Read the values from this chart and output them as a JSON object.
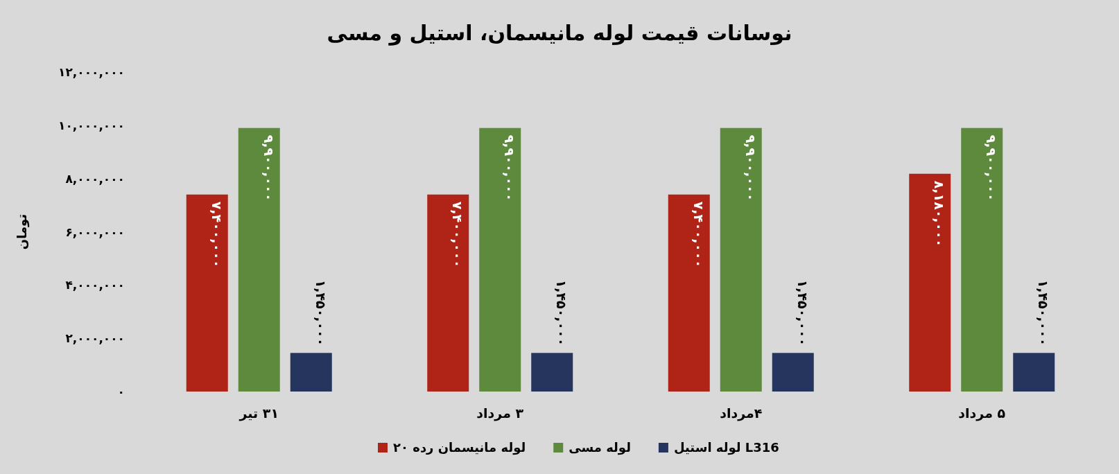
{
  "chart_data": {
    "type": "bar",
    "title": "نوسانات قیمت لوله مانیسمان، استیل و مسی",
    "ylabel": "تومان",
    "categories": [
      "۳۱ تیر",
      "۳ مرداد",
      "۴مرداد",
      "۵ مرداد"
    ],
    "series": [
      {
        "name": "لوله مانیسمان  رده ۲۰",
        "color": "#b02418",
        "values": [
          7400000,
          7400000,
          7400000,
          8180000
        ],
        "value_labels": [
          "۷,۴۰۰,۰۰۰",
          "۷,۴۰۰,۰۰۰",
          "۷,۴۰۰,۰۰۰",
          "۸,۱۸۰,۰۰۰"
        ]
      },
      {
        "name": "لوله مسی",
        "color": "#5e8a3e",
        "values": [
          9900000,
          9900000,
          9900000,
          9900000
        ],
        "value_labels": [
          "۹,۹۰۰,۰۰۰",
          "۹,۹۰۰,۰۰۰",
          "۹,۹۰۰,۰۰۰",
          "۹,۹۰۰,۰۰۰"
        ]
      },
      {
        "name": "لوله استیل L316",
        "color": "#25355e",
        "values": [
          1450000,
          1450000,
          1450000,
          1450000
        ],
        "value_labels": [
          "۱,۴۵۰,۰۰۰",
          "۱,۴۵۰,۰۰۰",
          "۱,۴۵۰,۰۰۰",
          "۱,۴۵۰,۰۰۰"
        ]
      }
    ],
    "ylim": [
      0,
      12000000
    ],
    "yticks": [
      {
        "value": 0,
        "label": "۰"
      },
      {
        "value": 2000000,
        "label": "۲,۰۰۰,۰۰۰"
      },
      {
        "value": 4000000,
        "label": "۴,۰۰۰,۰۰۰"
      },
      {
        "value": 6000000,
        "label": "۶,۰۰۰,۰۰۰"
      },
      {
        "value": 8000000,
        "label": "۸,۰۰۰,۰۰۰"
      },
      {
        "value": 10000000,
        "label": "۱۰,۰۰۰,۰۰۰"
      },
      {
        "value": 12000000,
        "label": "۱۲,۰۰۰,۰۰۰"
      }
    ],
    "grid": false,
    "legend": "bottom"
  }
}
